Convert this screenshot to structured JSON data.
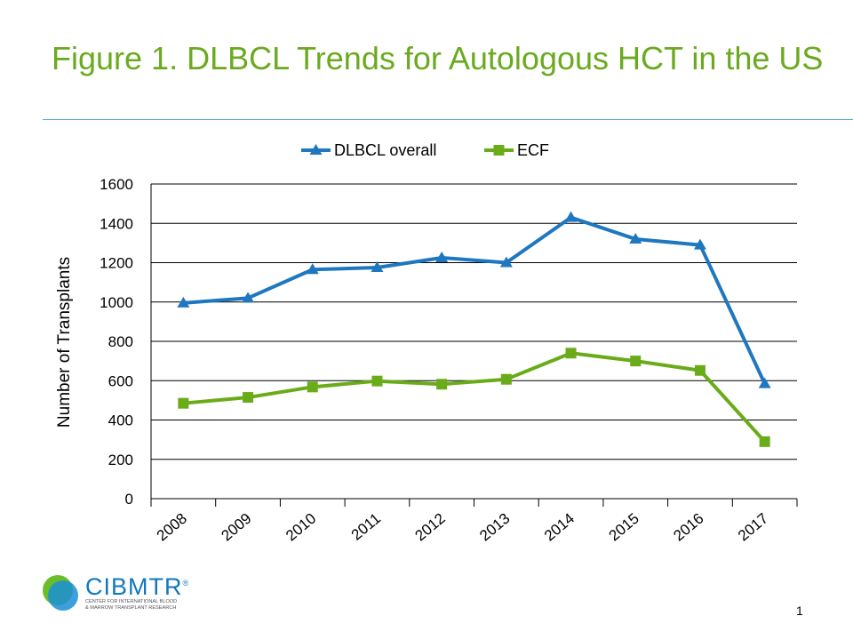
{
  "slide": {
    "title": "Figure 1. DLBCL Trends for Autologous HCT in the US",
    "page_number": "1"
  },
  "logo": {
    "name": "CIBMTR",
    "registered": "®",
    "tagline_1": "CENTER FOR INTERNATIONAL BLOOD",
    "tagline_2": "& MARROW TRANSPLANT RESEARCH",
    "colors": {
      "text": "#1177bf",
      "circle_blue": "#1b8fd6",
      "circle_green": "#6cbd2b"
    }
  },
  "chart_data": {
    "type": "line",
    "title": "",
    "xlabel": "",
    "ylabel": "Number of Transplants",
    "categories": [
      "2008",
      "2009",
      "2010",
      "2011",
      "2012",
      "2013",
      "2014",
      "2015",
      "2016",
      "2017"
    ],
    "ylim": [
      0,
      1600
    ],
    "yticks": [
      "0",
      "200",
      "400",
      "600",
      "800",
      "1000",
      "1200",
      "1400",
      "1600"
    ],
    "grid": true,
    "legend_position": "top",
    "series": [
      {
        "name": "DLBCL overall",
        "marker": "triangle",
        "color": "#1f77c0",
        "values": [
          995,
          1020,
          1165,
          1175,
          1225,
          1200,
          1430,
          1320,
          1290,
          585
        ]
      },
      {
        "name": "ECF",
        "marker": "square",
        "color": "#6aab19",
        "values": [
          485,
          515,
          568,
          598,
          582,
          607,
          740,
          700,
          652,
          290
        ]
      }
    ]
  }
}
